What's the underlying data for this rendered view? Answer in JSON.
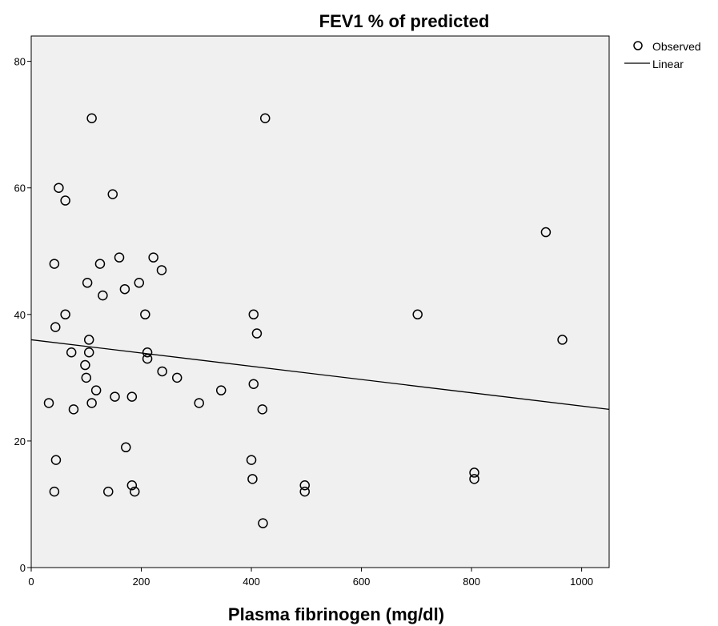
{
  "chart_data": {
    "type": "scatter",
    "title": "FEV1 % of predicted",
    "xlabel": "Plasma fibrinogen (mg/dl)",
    "ylabel": "",
    "xlim": [
      0,
      1050
    ],
    "ylim": [
      0,
      84
    ],
    "x_ticks": [
      0,
      200,
      400,
      600,
      800,
      1000
    ],
    "y_ticks": [
      0,
      20,
      40,
      60,
      80
    ],
    "grid": false,
    "legend_position": "top-right",
    "background": "#f0f0f0",
    "series": [
      {
        "name": "Observed",
        "kind": "points",
        "points": [
          [
            110,
            71
          ],
          [
            425,
            71
          ],
          [
            50,
            60
          ],
          [
            62,
            58
          ],
          [
            148,
            59
          ],
          [
            935,
            53
          ],
          [
            42,
            48
          ],
          [
            125,
            48
          ],
          [
            160,
            49
          ],
          [
            222,
            49
          ],
          [
            237,
            47
          ],
          [
            102,
            45
          ],
          [
            170,
            44
          ],
          [
            196,
            45
          ],
          [
            130,
            43
          ],
          [
            62,
            40
          ],
          [
            207,
            40
          ],
          [
            404,
            40
          ],
          [
            702,
            40
          ],
          [
            44,
            38
          ],
          [
            410,
            37
          ],
          [
            105,
            36
          ],
          [
            965,
            36
          ],
          [
            73,
            34
          ],
          [
            105,
            34
          ],
          [
            211,
            34
          ],
          [
            211,
            33
          ],
          [
            98,
            32
          ],
          [
            100,
            30
          ],
          [
            238,
            31
          ],
          [
            265,
            30
          ],
          [
            118,
            28
          ],
          [
            345,
            28
          ],
          [
            404,
            29
          ],
          [
            32,
            26
          ],
          [
            110,
            26
          ],
          [
            152,
            27
          ],
          [
            183,
            27
          ],
          [
            305,
            26
          ],
          [
            77,
            25
          ],
          [
            420,
            25
          ],
          [
            45,
            17
          ],
          [
            172,
            19
          ],
          [
            400,
            17
          ],
          [
            42,
            12
          ],
          [
            140,
            12
          ],
          [
            183,
            13
          ],
          [
            188,
            12
          ],
          [
            402,
            14
          ],
          [
            497,
            13
          ],
          [
            497,
            12
          ],
          [
            805,
            15
          ],
          [
            805,
            14
          ],
          [
            421,
            7
          ]
        ]
      },
      {
        "name": "Linear",
        "kind": "line",
        "points": [
          [
            0,
            36
          ],
          [
            1050,
            25
          ]
        ]
      }
    ]
  }
}
